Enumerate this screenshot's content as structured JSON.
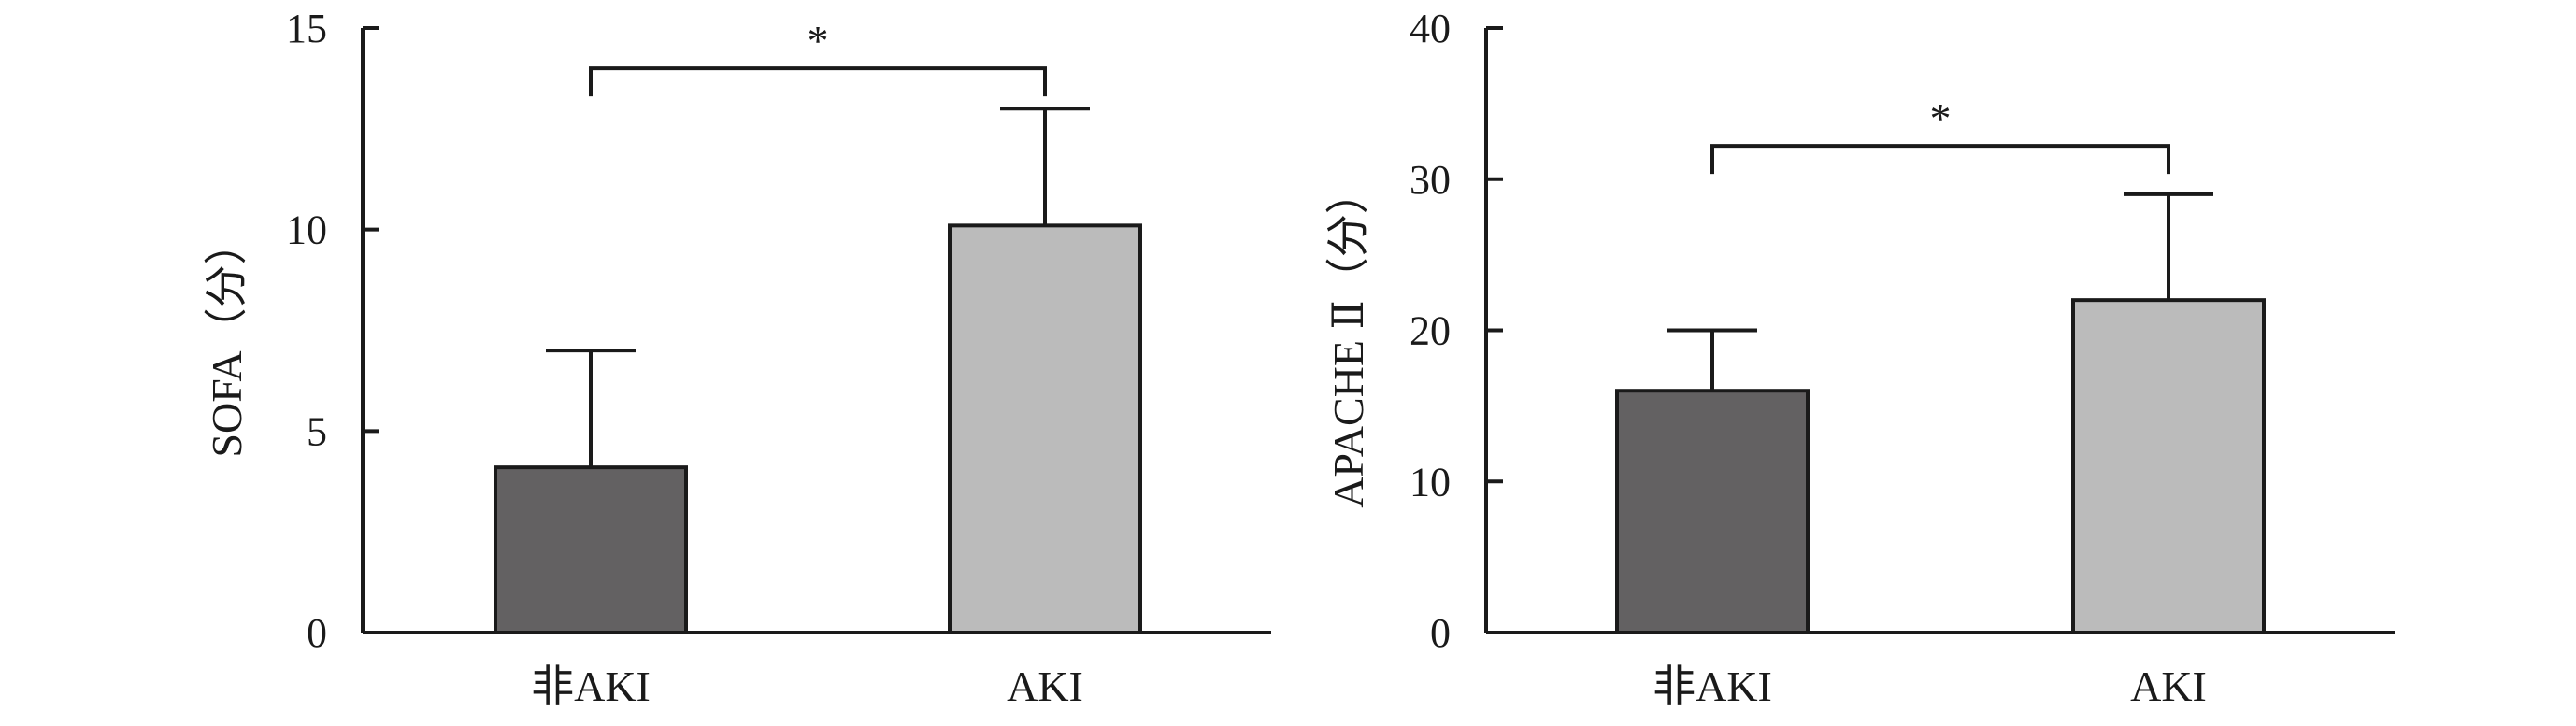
{
  "chart_data": [
    {
      "type": "bar",
      "categories": [
        "非AKI",
        "AKI"
      ],
      "values": [
        4.1,
        10.1
      ],
      "errors": [
        2.9,
        2.9
      ],
      "ylabel": "SOFA（分）",
      "ylim": [
        0,
        15
      ],
      "yticks": [
        0,
        5,
        10,
        15
      ],
      "colors": [
        "#636162",
        "#bbbbbb"
      ],
      "significance": {
        "label": "*",
        "pair": [
          0,
          1
        ],
        "level": 14.0
      }
    },
    {
      "type": "bar",
      "categories": [
        "非AKI",
        "AKI"
      ],
      "values": [
        16,
        22
      ],
      "errors": [
        4,
        7
      ],
      "ylabel": "APACHE Ⅱ（分）",
      "ylim": [
        0,
        40
      ],
      "yticks": [
        0,
        10,
        20,
        30,
        40
      ],
      "colors": [
        "#636162",
        "#bbbbbb"
      ],
      "significance": {
        "label": "*",
        "pair": [
          0,
          1
        ],
        "level": 32.2
      }
    }
  ]
}
